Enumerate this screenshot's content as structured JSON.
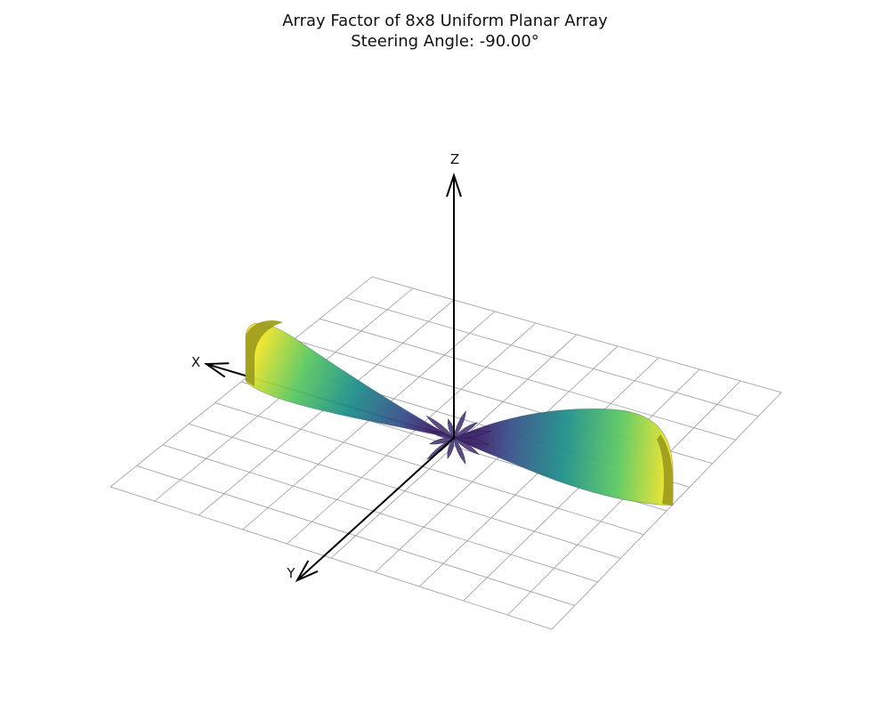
{
  "chart_data": {
    "type": "surface3d",
    "title": "Array Factor of 8x8 Uniform Planar Array",
    "subtitle": "Steering Angle: -90.00°",
    "array_size": [
      8,
      8
    ],
    "steering_angle_deg": -90.0,
    "axes": {
      "x": {
        "label": "X"
      },
      "y": {
        "label": "Y"
      },
      "z": {
        "label": "Z"
      }
    },
    "grid": true,
    "colormap": "viridis",
    "colormap_stops": [
      "#440154",
      "#3b528b",
      "#21918c",
      "#5ec962",
      "#fde725"
    ],
    "main_lobes": [
      {
        "direction": "+x",
        "relative_length": 1.0
      },
      {
        "direction": "-x",
        "relative_length": 1.0
      }
    ],
    "side_lobe_count": 12,
    "side_lobe_relative_length": 0.14
  }
}
